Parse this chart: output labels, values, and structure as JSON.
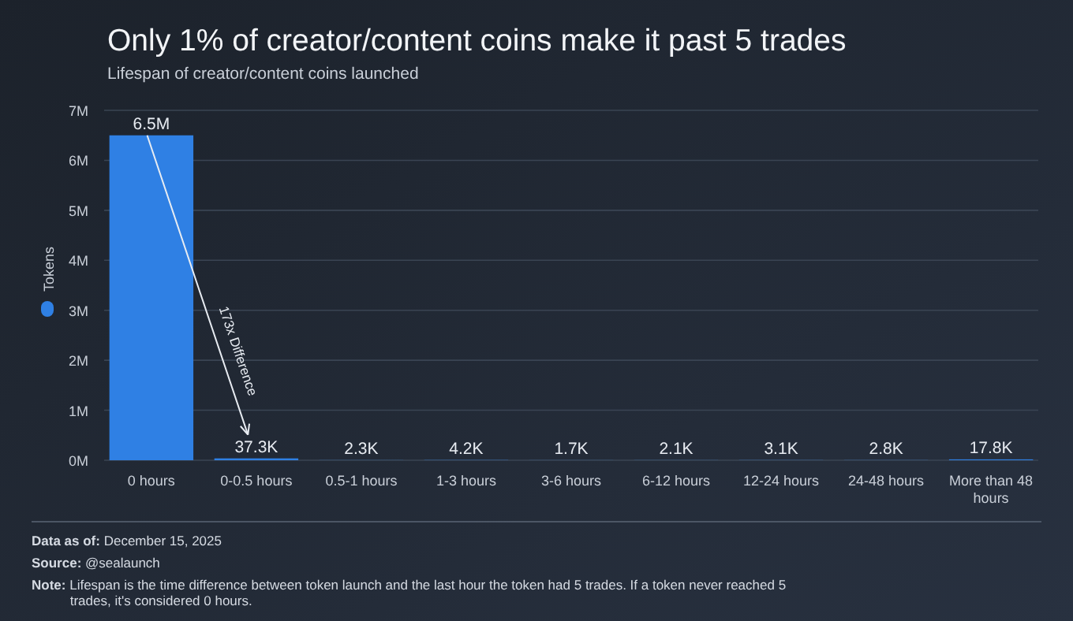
{
  "chart_data": {
    "type": "bar",
    "title": "Only 1% of creator/content coins make it past 5 trades",
    "subtitle": "Lifespan of creator/content coins launched",
    "categories": [
      "0 hours",
      "0-0.5 hours",
      "0.5-1 hours",
      "1-3 hours",
      "3-6 hours",
      "6-12 hours",
      "12-24 hours",
      "24-48 hours",
      "More than 48 hours"
    ],
    "series": [
      {
        "name": "Tokens",
        "color": "#2f80e4",
        "values": [
          6500000,
          37300,
          2300,
          4200,
          1700,
          2100,
          3100,
          2800,
          17800
        ],
        "value_labels": [
          "6.5M",
          "37.3K",
          "2.3K",
          "4.2K",
          "1.7K",
          "2.1K",
          "3.1K",
          "2.8K",
          "17.8K"
        ]
      }
    ],
    "ylim": [
      0,
      7000000
    ],
    "yticks": [
      {
        "value": 0,
        "label": "0M"
      },
      {
        "value": 1000000,
        "label": "1M"
      },
      {
        "value": 2000000,
        "label": "2M"
      },
      {
        "value": 3000000,
        "label": "3M"
      },
      {
        "value": 4000000,
        "label": "4M"
      },
      {
        "value": 5000000,
        "label": "5M"
      },
      {
        "value": 6000000,
        "label": "6M"
      },
      {
        "value": 7000000,
        "label": "7M"
      }
    ],
    "grid": "y",
    "legend": "left",
    "annotations": [
      "173x Difference",
      "Data as of: December 15, 2025",
      "Source: @sealaunch",
      "Note: Lifespan is the time difference between token launch and the last hour the token had 5 trades. If a token never reached 5 trades, it's considered 0 hours."
    ]
  }
}
